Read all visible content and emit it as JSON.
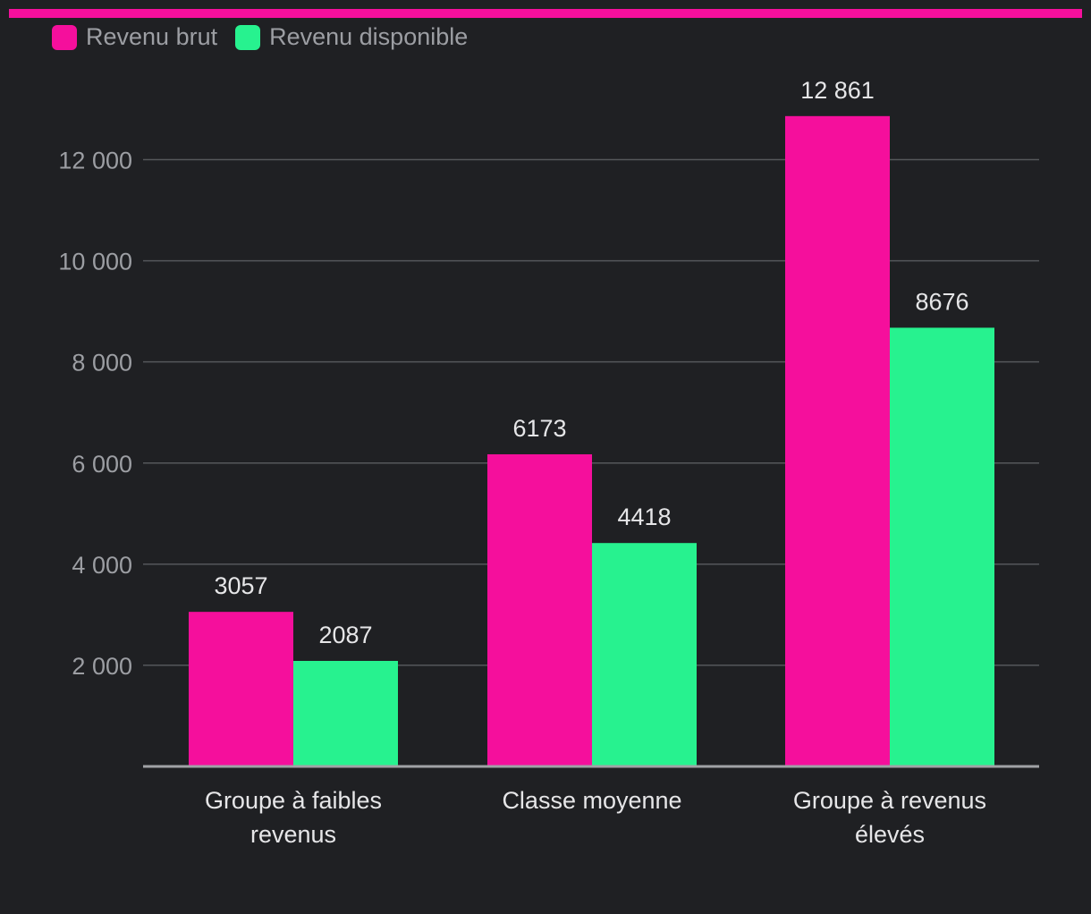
{
  "colors": {
    "background": "#1f2023",
    "accent": "#f50f9c",
    "series_1": "#f50f9c",
    "series_2": "#27f28f",
    "grid": "#55575b",
    "axis": "#a0a2a6",
    "tick_text": "#9c9ea3",
    "label_text": "#e6e6e8"
  },
  "chart_data": {
    "type": "bar",
    "title": "",
    "xlabel": "",
    "ylabel": "",
    "legend_position": "top-left",
    "grid": true,
    "categories": [
      "Groupe à faibles revenus",
      "Classe moyenne",
      "Groupe à revenus élevés"
    ],
    "category_label_lines": [
      [
        "Groupe à faibles",
        "revenus"
      ],
      [
        "Classe moyenne"
      ],
      [
        "Groupe à revenus",
        "élevés"
      ]
    ],
    "series": [
      {
        "name": "Revenu brut",
        "values": [
          3057,
          6173,
          12861
        ],
        "data_labels": [
          "3057",
          "6173",
          "12 861"
        ]
      },
      {
        "name": "Revenu disponible",
        "values": [
          2087,
          4418,
          8676
        ],
        "data_labels": [
          "2087",
          "4418",
          "8676"
        ]
      }
    ],
    "ylim": [
      0,
      13500
    ],
    "y_ticks": [
      2000,
      4000,
      6000,
      8000,
      10000,
      12000
    ],
    "y_tick_labels": [
      "2 000",
      "4 000",
      "6 000",
      "8 000",
      "10 000",
      "12 000"
    ]
  }
}
